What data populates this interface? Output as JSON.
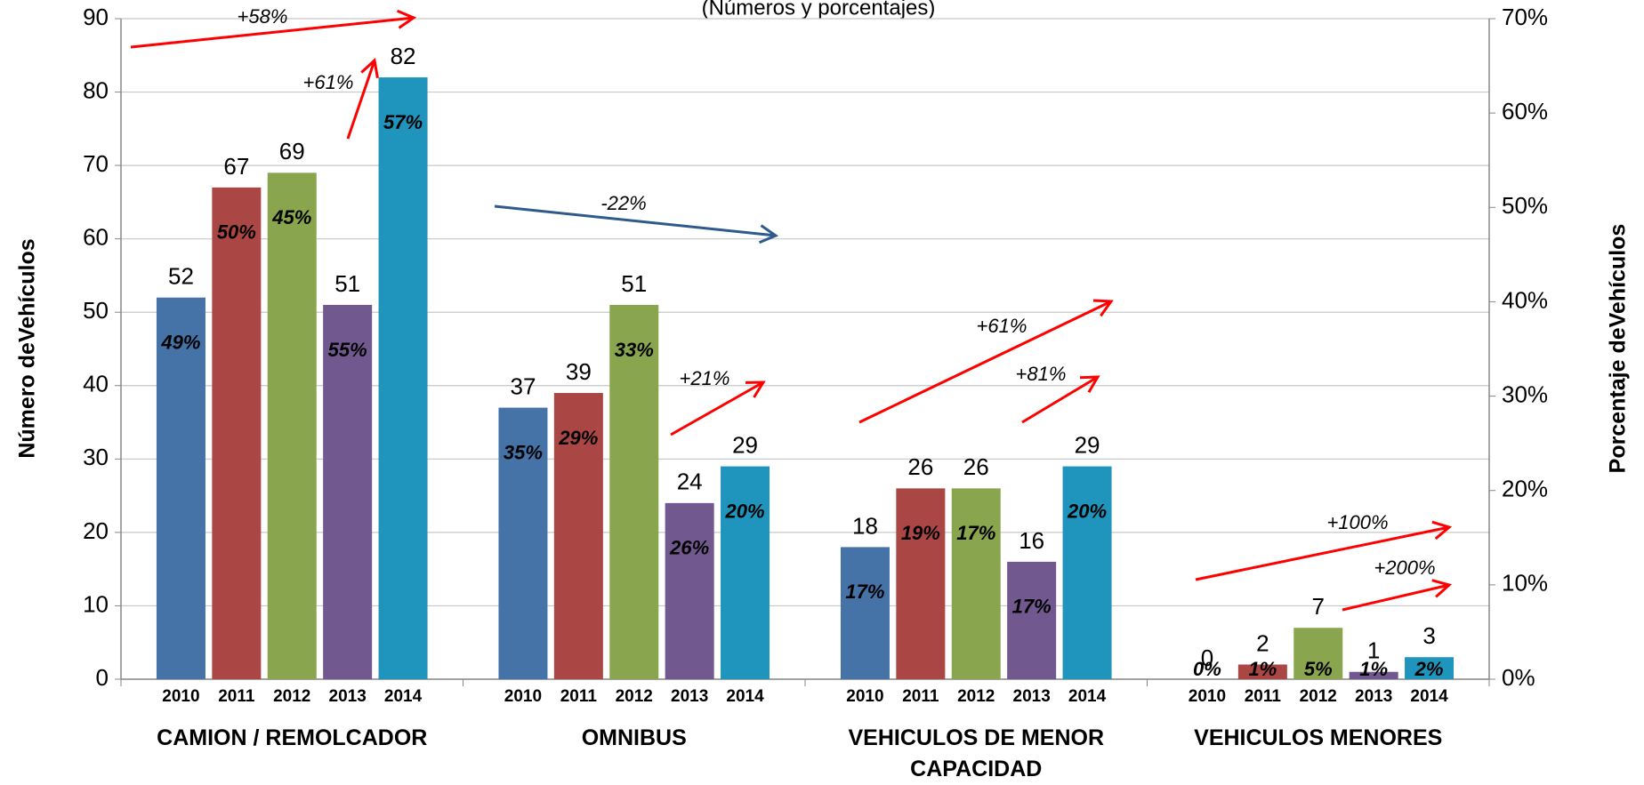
{
  "chart_data": {
    "type": "bar",
    "subtitle": "(Números y porcentajes)",
    "y_label": "Número deVehículos",
    "y2_label": "Porcentaje deVehículos",
    "categories": [
      "CAMION / REMOLCADOR",
      "OMNIBUS",
      "VEHICULOS DE MENOR CAPACIDAD",
      "VEHICULOS MENORES"
    ],
    "series": [
      {
        "name": "2010",
        "color": "#4572a7",
        "values": [
          52,
          37,
          18,
          0
        ],
        "share_labels": [
          "49%",
          "35%",
          "17%",
          "0%"
        ]
      },
      {
        "name": "2011",
        "color": "#aa4643",
        "values": [
          67,
          39,
          26,
          2
        ],
        "share_labels": [
          "50%",
          "29%",
          "19%",
          "1%"
        ]
      },
      {
        "name": "2012",
        "color": "#89a54e",
        "values": [
          69,
          51,
          26,
          7
        ],
        "share_labels": [
          "45%",
          "33%",
          "17%",
          "5%"
        ]
      },
      {
        "name": "2013",
        "color": "#71588f",
        "values": [
          51,
          24,
          16,
          1
        ],
        "share_labels": [
          "55%",
          "26%",
          "17%",
          "1%"
        ]
      },
      {
        "name": "2014",
        "color": "#1f94bc",
        "values": [
          82,
          29,
          29,
          3
        ],
        "share_labels": [
          "57%",
          "20%",
          "20%",
          "2%"
        ]
      }
    ],
    "ylim": [
      0,
      90
    ],
    "yticks": [
      0,
      10,
      20,
      30,
      40,
      50,
      60,
      70,
      80,
      90
    ],
    "y2lim": [
      0,
      70
    ],
    "y2ticks": [
      {
        "value": 0,
        "label": "0%"
      },
      {
        "value": 10,
        "label": "10%"
      },
      {
        "value": 20,
        "label": "20%"
      },
      {
        "value": 30,
        "label": "30%"
      },
      {
        "value": 40,
        "label": "40%"
      },
      {
        "value": 50,
        "label": "50%"
      },
      {
        "value": 60,
        "label": "60%"
      },
      {
        "value": 70,
        "label": "70%"
      }
    ],
    "grid": true,
    "annotations": [
      {
        "text": "+58%",
        "color": "#ff0000"
      },
      {
        "text": "+61%",
        "color": "#ff0000"
      },
      {
        "text": "-22%",
        "color": "#2f5a8c"
      },
      {
        "text": "+21%",
        "color": "#ff0000"
      },
      {
        "text": "+61%",
        "color": "#ff0000"
      },
      {
        "text": "+81%",
        "color": "#ff0000"
      },
      {
        "text": "+100%",
        "color": "#ff0000"
      },
      {
        "text": "+200%",
        "color": "#ff0000"
      }
    ]
  }
}
